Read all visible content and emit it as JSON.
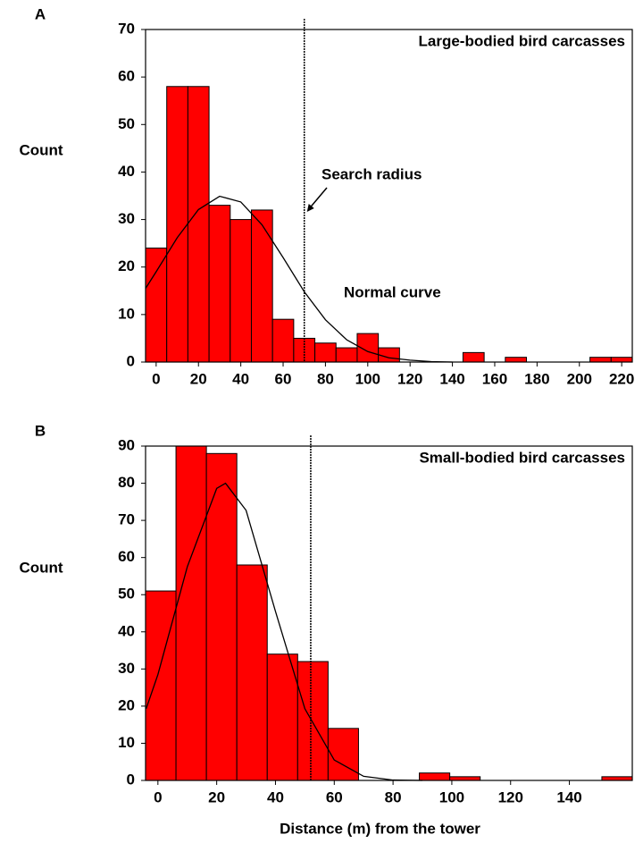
{
  "chart_data": [
    {
      "type": "histogram",
      "panel": "A",
      "title": "Large-bodied bird carcasses",
      "ylabel": "Count",
      "bins": [
        -5,
        5,
        15,
        25,
        35,
        45,
        55,
        65,
        75,
        85,
        95,
        105,
        115,
        125,
        135,
        145,
        155,
        165,
        175,
        185,
        195,
        205,
        215,
        225
      ],
      "counts": [
        24,
        58,
        58,
        33,
        30,
        32,
        9,
        5,
        4,
        3,
        6,
        3,
        0,
        0,
        0,
        2,
        0,
        1,
        0,
        0,
        0,
        1,
        1
      ],
      "color": "#ff0000",
      "xlim": [
        -5,
        225
      ],
      "ylim": [
        0,
        70
      ],
      "xticks": [
        0,
        20,
        40,
        60,
        80,
        100,
        120,
        140,
        160,
        180,
        200,
        220
      ],
      "yticks": [
        0,
        10,
        20,
        30,
        40,
        50,
        60,
        70
      ],
      "search_radius": 70,
      "curve": {
        "x": [
          -5,
          0,
          10,
          20,
          30,
          40,
          50,
          60,
          70,
          80,
          90,
          100,
          110,
          120,
          130,
          140
        ],
        "values": [
          15.5,
          19.0,
          26.2,
          32.1,
          34.9,
          33.7,
          28.9,
          22.0,
          14.8,
          8.9,
          4.7,
          2.2,
          0.9,
          0.4,
          0.1,
          0
        ]
      },
      "annotations": [
        "Search radius",
        "Normal curve"
      ]
    },
    {
      "type": "histogram",
      "panel": "B",
      "title": "Small-bodied bird carcasses",
      "ylabel": "Count",
      "xlabel": "Distance (m) from the tower",
      "bins": [
        -4.2,
        6.15,
        16.5,
        26.85,
        37.2,
        47.55,
        57.9,
        68.25,
        78.6,
        88.95,
        99.3,
        109.65,
        120,
        130.35,
        140.7,
        151.05,
        161.4
      ],
      "counts": [
        51,
        90,
        88,
        58,
        34,
        32,
        14,
        0,
        0,
        2,
        1,
        0,
        0,
        0,
        0,
        1
      ],
      "color": "#ff0000",
      "xlim": [
        -4.2,
        161.4
      ],
      "ylim": [
        0,
        90
      ],
      "xticks": [
        0,
        20,
        40,
        60,
        80,
        100,
        120,
        140
      ],
      "yticks": [
        0,
        10,
        20,
        30,
        40,
        50,
        60,
        70,
        80,
        90
      ],
      "search_radius": 52,
      "curve": {
        "x": [
          -4,
          0,
          10,
          20,
          23,
          30,
          40,
          50,
          60,
          70,
          80,
          90
        ],
        "values": [
          19.3,
          28.5,
          57.5,
          78.6,
          80,
          72.7,
          45.5,
          19.3,
          5.5,
          1.1,
          0.1,
          0
        ]
      }
    }
  ]
}
